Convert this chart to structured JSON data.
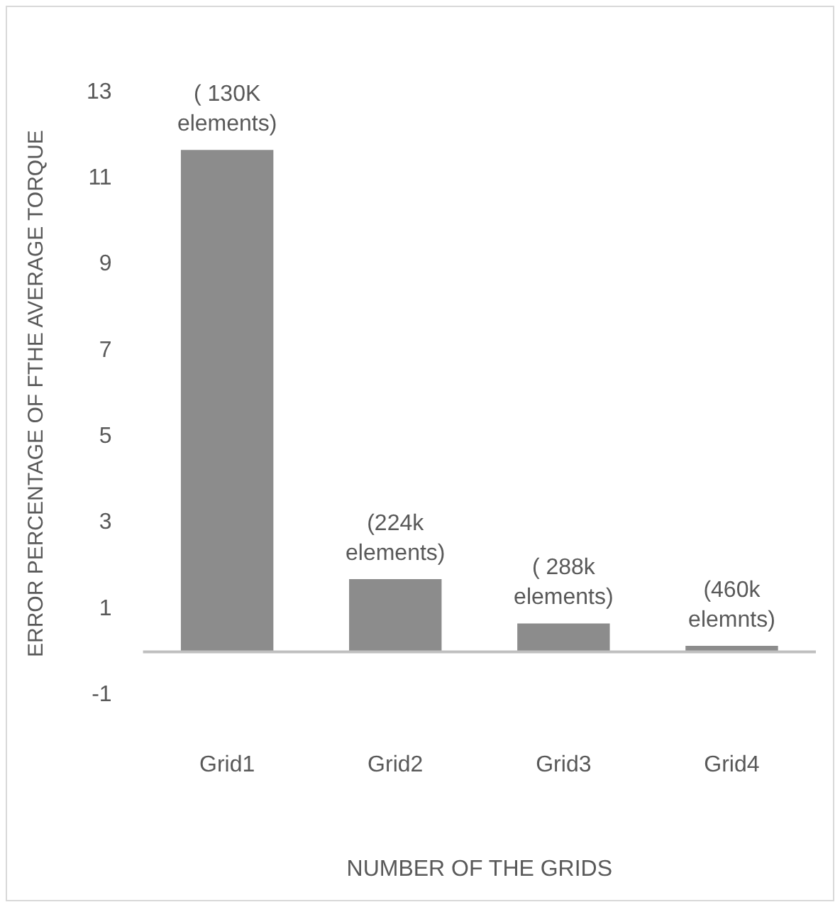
{
  "chart_data": {
    "type": "bar",
    "xlabel": "NUMBER OF THE GRIDS",
    "ylabel": "ERROR PERCENTAGE OF FTHE AVERAGE TORQUE",
    "categories": [
      "Grid1",
      "Grid2",
      "Grid3",
      "Grid4"
    ],
    "values": [
      11.66,
      1.69,
      0.66,
      0.14
    ],
    "color": "#8c8c8c",
    "ylim": [
      -1,
      13
    ],
    "yticks": [
      -1,
      1,
      3,
      5,
      7,
      9,
      11,
      13
    ],
    "grid": false,
    "legend": false,
    "annotations": [
      {
        "text": "( 130K elements)",
        "x": "Grid1",
        "y": 11.66
      },
      {
        "text": "(224k elements)",
        "x": "Grid2",
        "y": 1.69
      },
      {
        "text": "( 288k elements)",
        "x": "Grid3",
        "y": 0.66
      },
      {
        "text": "(460k elemnts)",
        "x": "Grid4",
        "y": 0.14
      }
    ]
  }
}
